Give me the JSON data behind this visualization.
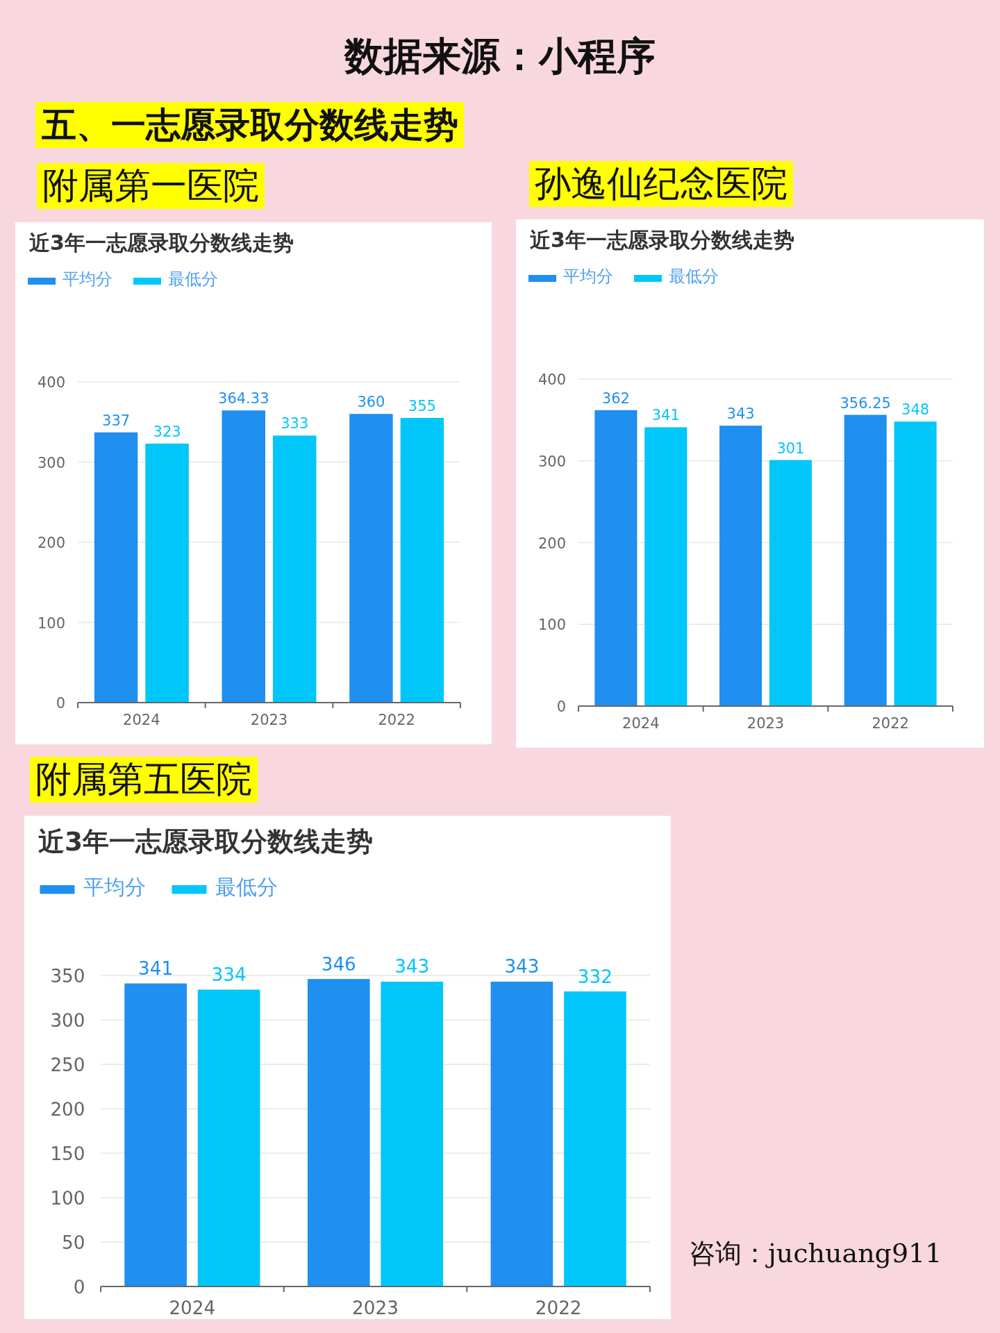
{
  "chart_data": [
    {
      "type": "bar",
      "title": "近3年一志愿录取分数线走势",
      "subtitle": "附属第一医院",
      "categories": [
        "2024",
        "2023",
        "2022"
      ],
      "series": [
        {
          "name": "平均分",
          "color": "#1f8ff0",
          "values": [
            337,
            364.33,
            360
          ]
        },
        {
          "name": "最低分",
          "color": "#00c6fa",
          "values": [
            323,
            333,
            355
          ]
        }
      ],
      "ylim": [
        0,
        400
      ],
      "yticks": [
        0,
        100,
        200,
        300,
        400
      ],
      "grid": "y",
      "legend": "top left",
      "data_labels": true,
      "annotations": [
        "数据来源：小程序",
        "五、一志愿录取分数线走势"
      ]
    },
    {
      "type": "bar",
      "title": "近3年一志愿录取分数线走势",
      "subtitle": "孙逸仙纪念医院",
      "categories": [
        "2024",
        "2023",
        "2022"
      ],
      "series": [
        {
          "name": "平均分",
          "color": "#1f8ff0",
          "values": [
            362,
            343,
            356.25
          ]
        },
        {
          "name": "最低分",
          "color": "#00c6fa",
          "values": [
            341,
            301,
            348
          ]
        }
      ],
      "ylim": [
        0,
        400
      ],
      "yticks": [
        0,
        100,
        200,
        300,
        400
      ],
      "grid": "y",
      "legend": "top left",
      "data_labels": true
    },
    {
      "type": "bar",
      "title": "近3年一志愿录取分数线走势",
      "subtitle": "附属第五医院",
      "categories": [
        "2024",
        "2023",
        "2022"
      ],
      "series": [
        {
          "name": "平均分",
          "color": "#1f8ff0",
          "values": [
            341,
            346,
            343
          ]
        },
        {
          "name": "最低分",
          "color": "#00c6fa",
          "values": [
            334,
            343,
            332
          ]
        }
      ],
      "ylim": [
        0,
        350
      ],
      "yticks": [
        0,
        50,
        100,
        150,
        200,
        250,
        300,
        350
      ],
      "grid": "y",
      "legend": "top left",
      "data_labels": true,
      "annotations": [
        "咨询：juchuang911"
      ]
    }
  ]
}
